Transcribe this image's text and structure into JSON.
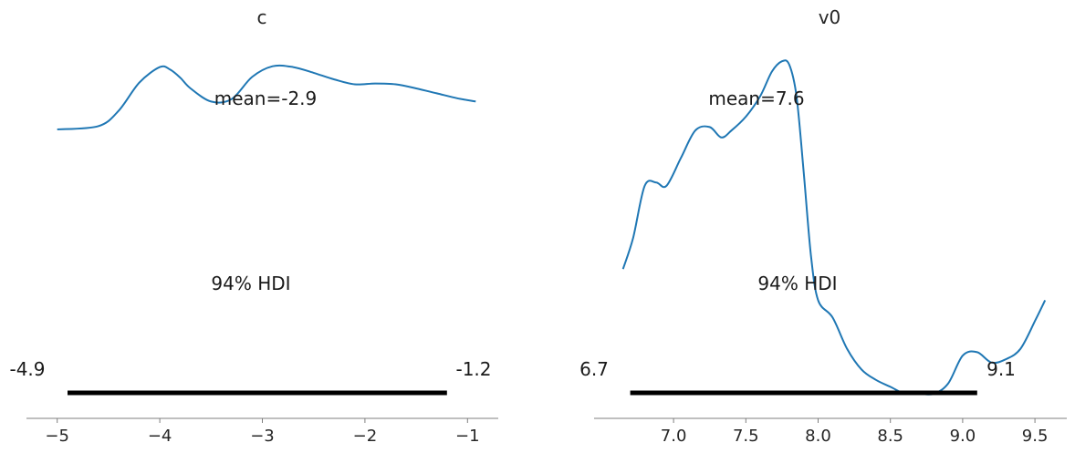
{
  "chart_data": [
    {
      "type": "density",
      "title": "c",
      "mean_label": "mean=-2.9",
      "hdi_label": "94% HDI",
      "hdi": {
        "low": -4.9,
        "high": -1.2,
        "low_label": "-4.9",
        "high_label": "-1.2"
      },
      "xlim": [
        -5.3,
        -0.7
      ],
      "ylim": [
        0,
        1
      ],
      "xticks": [
        -5,
        -4,
        -3,
        -2,
        -1
      ],
      "xtick_labels": [
        "−5",
        "−4",
        "−3",
        "−2",
        "−1"
      ],
      "color": "#1f77b4",
      "x": [
        -5.0,
        -4.6,
        -4.4,
        -4.2,
        -4.0,
        -3.9,
        -3.8,
        -3.7,
        -3.5,
        -3.3,
        -3.1,
        -2.9,
        -2.7,
        -2.5,
        -2.3,
        -2.1,
        -1.9,
        -1.7,
        -1.5,
        -1.3,
        -1.1,
        -0.92
      ],
      "y": [
        0.0,
        0.04,
        0.23,
        0.57,
        0.76,
        0.73,
        0.63,
        0.5,
        0.34,
        0.37,
        0.64,
        0.77,
        0.76,
        0.69,
        0.61,
        0.55,
        0.56,
        0.55,
        0.5,
        0.44,
        0.38,
        0.34
      ]
    },
    {
      "type": "density",
      "title": "v0",
      "mean_label": "mean=7.6",
      "hdi_label": "94% HDI",
      "hdi": {
        "low": 6.7,
        "high": 9.1,
        "low_label": "6.7",
        "high_label": "9.1"
      },
      "xlim": [
        6.45,
        9.72
      ],
      "ylim": [
        0,
        1
      ],
      "xticks": [
        7.0,
        7.5,
        8.0,
        8.5,
        9.0,
        9.5
      ],
      "xtick_labels": [
        "7.0",
        "7.5",
        "8.0",
        "8.5",
        "9.0",
        "9.5"
      ],
      "color": "#1f77b4",
      "x": [
        6.65,
        6.72,
        6.8,
        6.88,
        6.95,
        7.05,
        7.15,
        7.25,
        7.33,
        7.4,
        7.5,
        7.6,
        7.68,
        7.75,
        7.8,
        7.85,
        7.9,
        7.95,
        8.0,
        8.1,
        8.2,
        8.3,
        8.4,
        8.5,
        8.6,
        8.7,
        8.8,
        8.9,
        9.0,
        9.1,
        9.2,
        9.3,
        9.4,
        9.5,
        9.57
      ],
      "y": [
        0.36,
        0.45,
        0.6,
        0.61,
        0.6,
        0.68,
        0.76,
        0.77,
        0.74,
        0.76,
        0.8,
        0.86,
        0.93,
        0.96,
        0.95,
        0.86,
        0.64,
        0.4,
        0.27,
        0.22,
        0.13,
        0.07,
        0.04,
        0.02,
        0.0,
        0.0,
        0.0,
        0.03,
        0.11,
        0.12,
        0.09,
        0.1,
        0.13,
        0.21,
        0.27
      ]
    }
  ]
}
